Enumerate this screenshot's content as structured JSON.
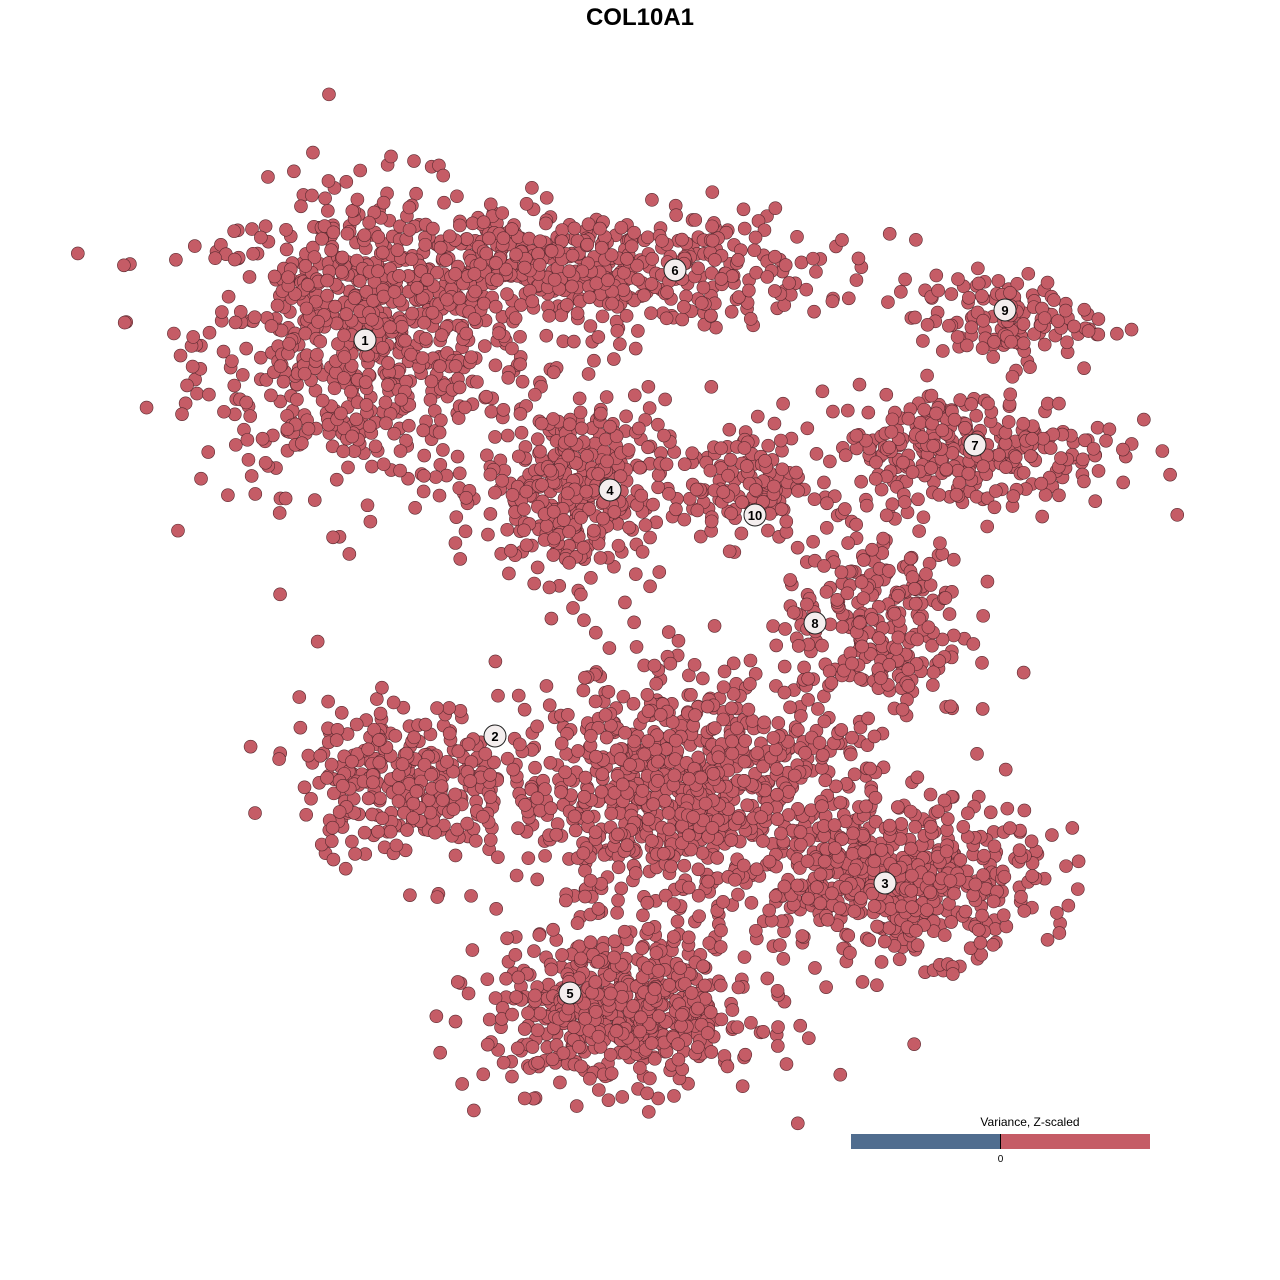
{
  "chart_data": {
    "type": "scatter",
    "title": "COL10A1",
    "xlim": [
      -45,
      50
    ],
    "ylim": [
      -46,
      46
    ],
    "grid": false,
    "point_color": "#c55c66",
    "point_edge_color": "#5a2a30",
    "clusters": [
      {
        "label": "1",
        "center": [
          -27,
          30
        ],
        "spread": [
          11,
          10
        ],
        "n": 700,
        "label_at": [
          -27,
          30
        ]
      },
      {
        "label": "6",
        "center": [
          -6,
          37
        ],
        "spread": [
          16,
          4
        ],
        "n": 550,
        "label_at": [
          4,
          37
        ]
      },
      {
        "label": "4",
        "center": [
          -6,
          15
        ],
        "spread": [
          6,
          6
        ],
        "n": 380,
        "label_at": [
          -2.5,
          15
        ]
      },
      {
        "label": "10",
        "center": [
          11,
          16
        ],
        "spread": [
          4,
          4
        ],
        "n": 120,
        "label_at": [
          12,
          12.5
        ]
      },
      {
        "label": "7",
        "center": [
          33,
          19
        ],
        "spread": [
          10,
          4
        ],
        "n": 300,
        "label_at": [
          34,
          19.5
        ]
      },
      {
        "label": "9",
        "center": [
          37,
          32
        ],
        "spread": [
          6,
          3
        ],
        "n": 130,
        "label_at": [
          37,
          33
        ]
      },
      {
        "label": "8",
        "center": [
          24,
          2
        ],
        "spread": [
          6,
          7
        ],
        "n": 260,
        "label_at": [
          18,
          1.7
        ]
      },
      {
        "label": "2",
        "center": [
          -23,
          -14
        ],
        "spread": [
          7,
          5
        ],
        "n": 300,
        "label_at": [
          -14,
          -9.6
        ]
      },
      {
        "label": "5",
        "center": [
          -1,
          -37
        ],
        "spread": [
          9,
          5
        ],
        "n": 600,
        "label_at": [
          -6.5,
          -35.3
        ]
      },
      {
        "label": "3",
        "center": [
          27,
          -24
        ],
        "spread": [
          9,
          5
        ],
        "n": 500,
        "label_at": [
          25,
          -24.3
        ]
      },
      {
        "label": "",
        "center": [
          5,
          -15
        ],
        "spread": [
          12,
          8
        ],
        "n": 900,
        "label_at": null
      }
    ],
    "legend": {
      "title": "Variance, Z-scaled",
      "tick": "0",
      "low_color": "#506d8f",
      "high_color": "#c55c66",
      "placement": "bottom-right"
    }
  }
}
